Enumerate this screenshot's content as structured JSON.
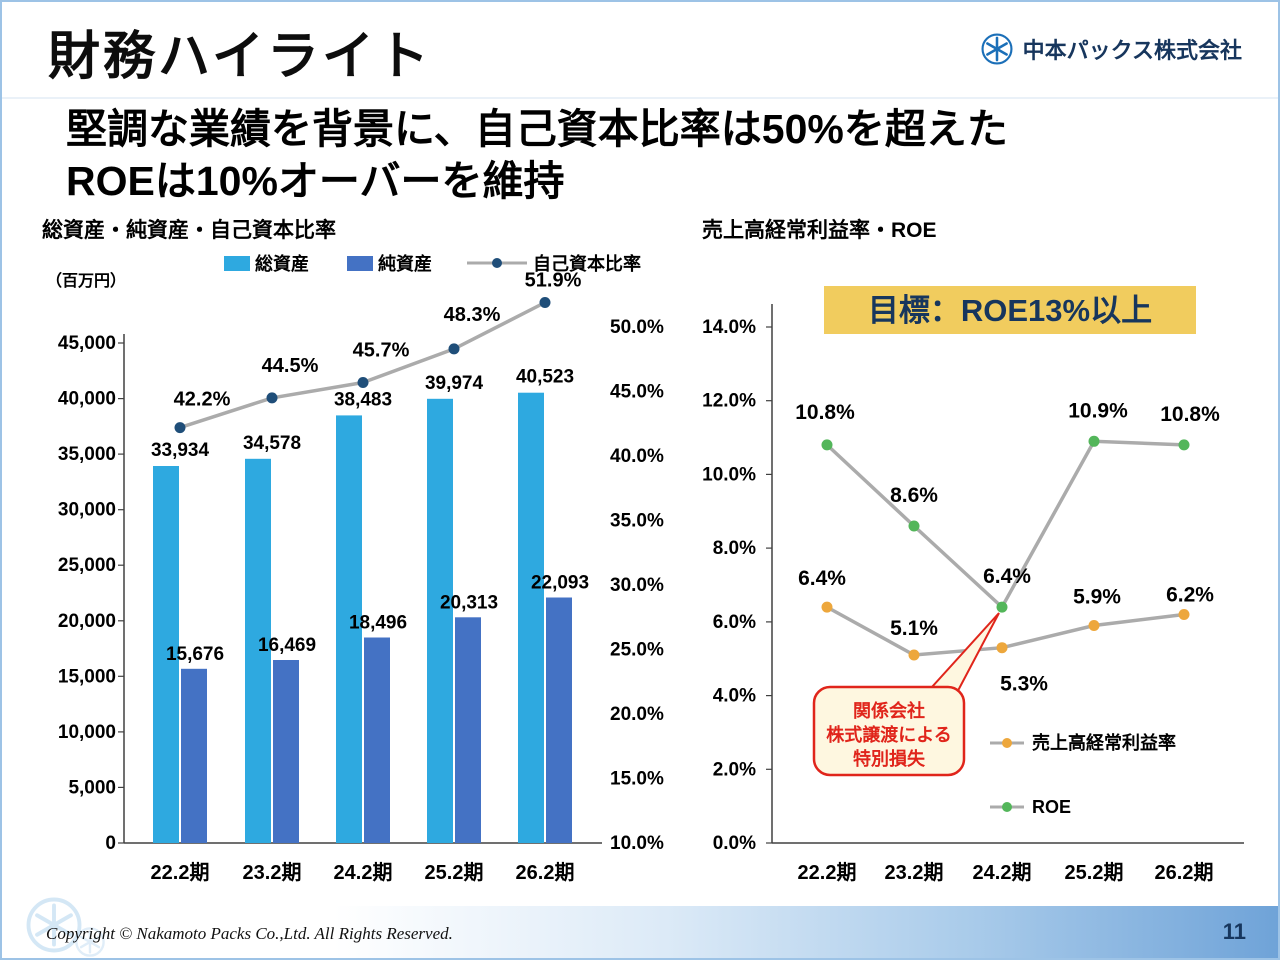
{
  "page": {
    "title": "財務ハイライト",
    "company": "中本パックス株式会社",
    "subtitle_line1": "堅調な業績を背景に、自己資本比率は50%を超えた",
    "subtitle_line2": "ROEは10%オーバーを維持",
    "copyright": "Copyright © Nakamoto Packs Co.,Ltd. All Rights Reserved.",
    "page_number": "11"
  },
  "colors": {
    "accent_navy": "#17365D",
    "slide_border": "#9DC3E6",
    "connector_gray": "#ABABAB",
    "axis_color": "#404040"
  },
  "chart_data": [
    {
      "type": "bar",
      "title": "総資産・純資産・自己資本比率",
      "unit_label": "（百万円）",
      "categories": [
        "22.2期",
        "23.2期",
        "24.2期",
        "25.2期",
        "26.2期"
      ],
      "series": [
        {
          "name": "総資産",
          "kind": "bar",
          "color": "#2EA9E0",
          "values": [
            33934,
            34578,
            38483,
            39974,
            40523
          ],
          "labels": [
            "33,934",
            "34,578",
            "38,483",
            "39,974",
            "40,523"
          ]
        },
        {
          "name": "純資産",
          "kind": "bar",
          "color": "#4472C4",
          "values": [
            15676,
            16469,
            18496,
            20313,
            22093
          ],
          "labels": [
            "15,676",
            "16,469",
            "18,496",
            "20,313",
            "22,093"
          ]
        },
        {
          "name": "自己資本比率",
          "kind": "line",
          "color": "#1F4E79",
          "values": [
            42.2,
            44.5,
            45.7,
            48.3,
            51.9
          ],
          "labels": [
            "42.2%",
            "44.5%",
            "45.7%",
            "48.3%",
            "51.9%"
          ]
        }
      ],
      "left_axis": {
        "min": 0,
        "max": 45000,
        "ticks": [
          "0",
          "5,000",
          "10,000",
          "15,000",
          "20,000",
          "25,000",
          "30,000",
          "35,000",
          "40,000",
          "45,000"
        ]
      },
      "right_axis": {
        "min": 10,
        "max": 50,
        "ticks": [
          "10.0%",
          "15.0%",
          "20.0%",
          "25.0%",
          "30.0%",
          "35.0%",
          "40.0%",
          "45.0%",
          "50.0%"
        ]
      }
    },
    {
      "type": "line",
      "title": "売上高経常利益率・ROE",
      "categories": [
        "22.2期",
        "23.2期",
        "24.2期",
        "25.2期",
        "26.2期"
      ],
      "series": [
        {
          "name": "売上高経常利益率",
          "color": "#EDA73C",
          "values": [
            6.4,
            5.1,
            5.3,
            5.9,
            6.2
          ],
          "labels": [
            "6.4%",
            "5.1%",
            "5.3%",
            "5.9%",
            "6.2%"
          ]
        },
        {
          "name": "ROE",
          "color": "#53B65A",
          "values": [
            10.8,
            8.6,
            6.4,
            10.9,
            10.8
          ],
          "labels": [
            "10.8%",
            "8.6%",
            "6.4%",
            "10.9%",
            "10.8%"
          ]
        }
      ],
      "y_axis": {
        "min": 0,
        "max": 14,
        "ticks": [
          "0.0%",
          "2.0%",
          "4.0%",
          "6.0%",
          "8.0%",
          "10.0%",
          "12.0%",
          "14.0%"
        ]
      },
      "goal": {
        "label": "目標：ROE13%以上",
        "bg": "#F1CC5E",
        "text_color": "#17365D"
      },
      "callout": {
        "lines": [
          "関係会社",
          "株式譲渡による",
          "特別損失"
        ],
        "border_color": "#E0251B",
        "bg": "#FEF7E0"
      }
    }
  ]
}
